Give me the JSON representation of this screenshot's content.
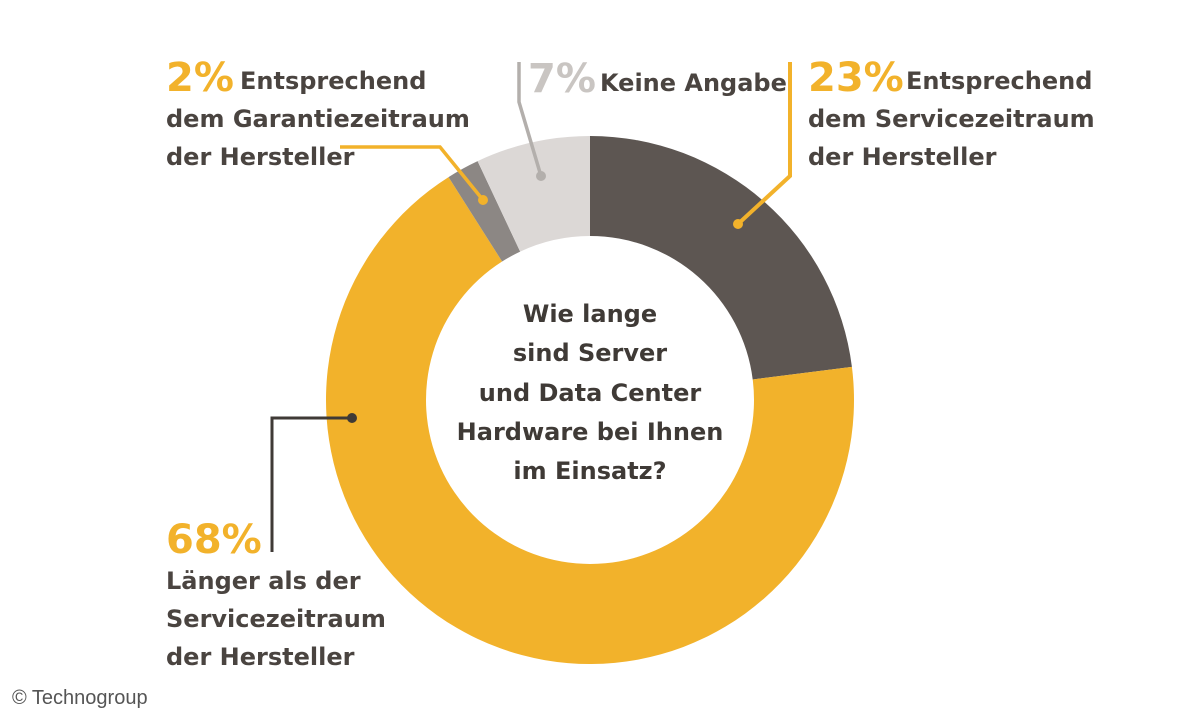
{
  "chart_data": {
    "type": "pie",
    "title": "Wie lange sind Server und Data Center Hardware bei Ihnen im Einsatz?",
    "center_lines": [
      "Wie lange",
      "sind Server",
      "und Data Center",
      "Hardware bei Ihnen",
      "im Einsatz?"
    ],
    "slices": [
      {
        "key": "servicezeitraum",
        "value": 23,
        "pct_label": "23%",
        "lines": [
          "Entsprechend",
          "dem Servicezeitraum",
          "der Hersteller"
        ],
        "color": "#5d5652",
        "pct_color": "#f2b22b"
      },
      {
        "key": "laenger",
        "value": 68,
        "pct_label": "68%",
        "lines": [
          "Länger als der",
          "Servicezeitraum",
          "der Hersteller"
        ],
        "color": "#f2b22b",
        "pct_color": "#f2b22b"
      },
      {
        "key": "garantiezeitraum",
        "value": 2,
        "pct_label": "2%",
        "lines": [
          "Entsprechend",
          "dem Garantiezeitraum",
          "der Hersteller"
        ],
        "color": "#8c8784",
        "pct_color": "#f2b22b"
      },
      {
        "key": "keine_angabe",
        "value": 7,
        "pct_label": "7%",
        "lines": [
          "Keine Angabe"
        ],
        "color": "#dcd8d6",
        "pct_color": "#c9c5c2"
      }
    ]
  },
  "footer": {
    "copyright": "© Technogroup"
  }
}
